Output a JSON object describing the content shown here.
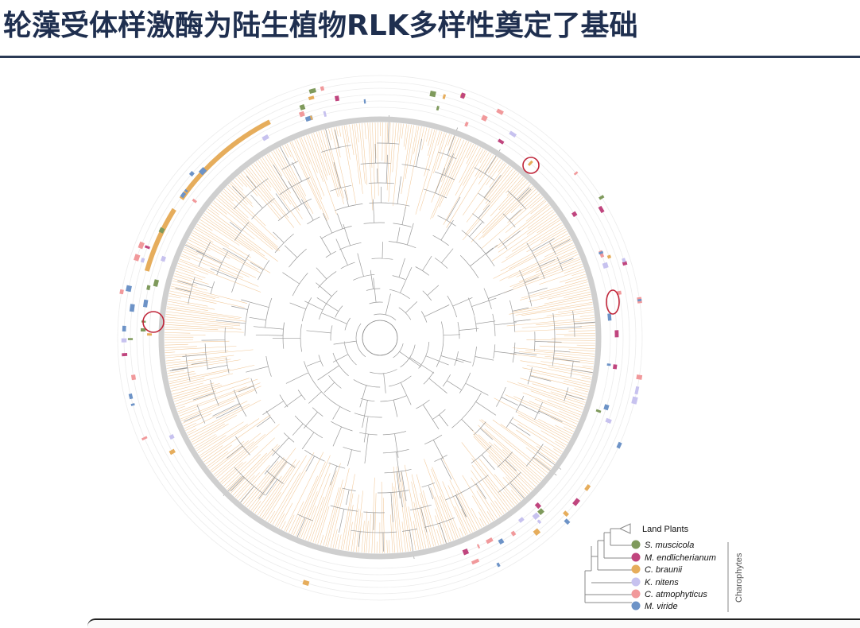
{
  "slide": {
    "title": "轮藻受体样激酶为陆生植物RLK多样性奠定了基础"
  },
  "legend": {
    "top_item": {
      "label": "Land Plants"
    },
    "items": [
      {
        "label": "S. muscicola",
        "color": "#7f9a5c"
      },
      {
        "label": "M. endlicherianum",
        "color": "#c0457e"
      },
      {
        "label": "C. braunii",
        "color": "#e6ad5c"
      },
      {
        "label": "K. nitens",
        "color": "#c7c2ef"
      },
      {
        "label": "C. atmophyticus",
        "color": "#f1999b"
      },
      {
        "label": "M. viride",
        "color": "#6d93c7"
      }
    ],
    "group_label": "Charophytes"
  },
  "colors": {
    "title": "#1f2f4f",
    "ring": "#c8c8c8",
    "branch": "#f2c99a",
    "highlight": "#c0263a"
  }
}
